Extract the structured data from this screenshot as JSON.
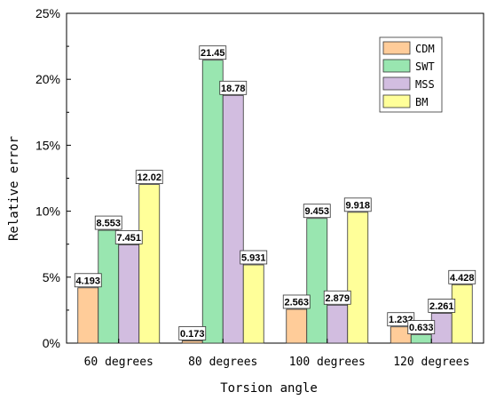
{
  "chart_data": {
    "type": "bar",
    "title": "",
    "xlabel": "Torsion angle",
    "ylabel": "Relative error",
    "categories": [
      "60 degrees",
      "80 degrees",
      "100 degrees",
      "120 degrees"
    ],
    "ylim": [
      0,
      25
    ],
    "yticks": [
      "0%",
      "5%",
      "10%",
      "15%",
      "20%",
      "25%"
    ],
    "grid": false,
    "legend_position": "top-right",
    "series": [
      {
        "name": "CDM",
        "color": "#FFCC99",
        "values": [
          4.193,
          0.173,
          2.563,
          1.232
        ],
        "labels": [
          "4.193",
          "0.173",
          "2.563",
          "1.232"
        ]
      },
      {
        "name": "SWT",
        "color": "#99E6B0",
        "values": [
          8.553,
          21.45,
          9.453,
          0.633
        ],
        "labels": [
          "8.553",
          "21.45",
          "9.453",
          "0.633"
        ]
      },
      {
        "name": "MSS",
        "color": "#D2BDE0",
        "values": [
          7.451,
          18.78,
          2.879,
          2.261
        ],
        "labels": [
          "7.451",
          "18.78",
          "2.879",
          "2.261"
        ]
      },
      {
        "name": "BM",
        "color": "#FFFF99",
        "values": [
          12.02,
          5.931,
          9.918,
          4.428
        ],
        "labels": [
          "12.02",
          "5.931",
          "9.918",
          "4.428"
        ]
      }
    ]
  }
}
